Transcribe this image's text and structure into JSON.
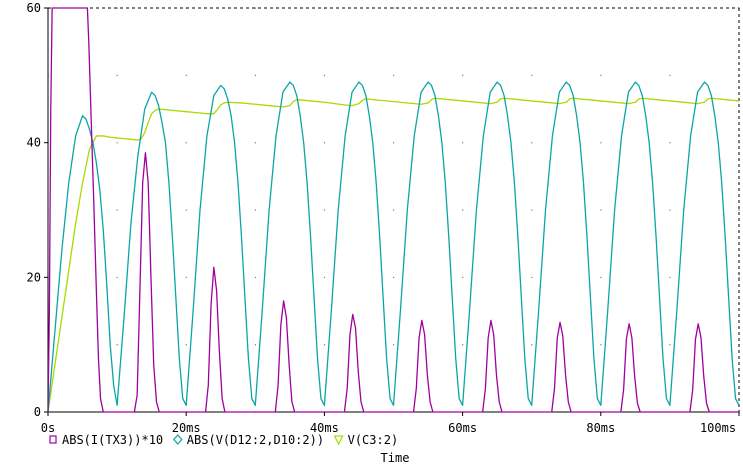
{
  "chart_data": {
    "type": "line",
    "title": "",
    "xlabel": "Time",
    "ylabel": "",
    "xlim": [
      0,
      100
    ],
    "ylim": [
      0,
      60
    ],
    "x_ticks": [
      0,
      20,
      40,
      60,
      80,
      100
    ],
    "x_tick_labels": [
      "0s",
      "20ms",
      "40ms",
      "60ms",
      "80ms",
      "100ms"
    ],
    "y_ticks": [
      0,
      20,
      40,
      60
    ],
    "y_tick_labels": [
      "0",
      "20",
      "40",
      "60"
    ],
    "grid": "dotted",
    "legend_position": "bottom-left",
    "series": [
      {
        "name": "ABS(I(TX3))*10",
        "color": "#a000a0",
        "marker": "square",
        "x": [
          0,
          0.2,
          0.4,
          0.6,
          0.8,
          1.0,
          1.4,
          2.0,
          3.0,
          4.0,
          5.0,
          5.5,
          5.7,
          5.9,
          6.2,
          6.6,
          7.0,
          7.3,
          7.6,
          8.0,
          8.5,
          9.0,
          9.5,
          10,
          12.5,
          12.9,
          13.3,
          13.7,
          14.1,
          14.5,
          14.9,
          15.3,
          15.7,
          16.1,
          16.5,
          22.8,
          23.2,
          23.6,
          24.0,
          24.4,
          24.8,
          25.2,
          25.6,
          32.9,
          33.3,
          33.7,
          34.1,
          34.5,
          34.9,
          35.3,
          35.7,
          42.9,
          43.3,
          43.7,
          44.1,
          44.5,
          44.9,
          45.3,
          45.7,
          52.9,
          53.3,
          53.7,
          54.1,
          54.5,
          54.9,
          55.3,
          55.7,
          62.9,
          63.3,
          63.7,
          64.1,
          64.5,
          64.9,
          65.3,
          65.7,
          72.9,
          73.3,
          73.7,
          74.1,
          74.5,
          74.9,
          75.3,
          75.7,
          82.9,
          83.3,
          83.7,
          84.1,
          84.5,
          84.9,
          85.3,
          85.7,
          92.9,
          93.3,
          93.7,
          94.1,
          94.5,
          94.9,
          95.3,
          95.7,
          100
        ],
        "values": [
          0,
          15,
          45,
          60,
          60,
          60,
          60,
          60,
          60,
          60,
          60,
          60,
          60,
          55,
          45,
          32,
          18,
          8,
          2,
          0,
          0,
          0,
          0,
          0,
          0,
          2.5,
          18,
          34,
          38.5,
          34,
          20,
          7,
          1.5,
          0,
          0,
          0,
          4,
          16,
          21.5,
          18,
          9,
          2,
          0,
          0,
          4,
          13,
          16.5,
          14,
          7,
          1.5,
          0,
          0,
          3.5,
          11.5,
          14.5,
          12.5,
          6,
          1.5,
          0,
          0,
          3.5,
          11,
          13.6,
          11.5,
          5.5,
          1.5,
          0,
          0,
          3.5,
          11,
          13.6,
          11.5,
          5.5,
          1.5,
          0,
          0,
          3.5,
          11,
          13.3,
          11.3,
          5.5,
          1.5,
          0,
          0,
          3.3,
          10.8,
          13.1,
          11,
          5.3,
          1.3,
          0,
          0,
          3.3,
          10.8,
          13.1,
          11,
          5.3,
          1.3,
          0,
          0
        ]
      },
      {
        "name": "ABS(V(D12:2,D10:2))",
        "color": "#0aa5a5",
        "marker": "diamond",
        "x": [
          0,
          1,
          2,
          3,
          4,
          5,
          5.5,
          6,
          6.5,
          7,
          7.5,
          8,
          8.5,
          9,
          9.5,
          10,
          11,
          12,
          13,
          14,
          15,
          15.5,
          16,
          16.5,
          17,
          17.5,
          18,
          18.5,
          19,
          19.5,
          20,
          21,
          22,
          23,
          24,
          25,
          25.5,
          26,
          26.5,
          27,
          27.5,
          28,
          28.5,
          29,
          29.5,
          30,
          31,
          32,
          33,
          34,
          35,
          35.5,
          36,
          36.5,
          37,
          37.5,
          38,
          38.5,
          39,
          39.5,
          40,
          41,
          42,
          43,
          44,
          45,
          45.5,
          46,
          46.5,
          47,
          47.5,
          48,
          48.5,
          49,
          49.5,
          50,
          51,
          52,
          53,
          54,
          55,
          55.5,
          56,
          56.5,
          57,
          57.5,
          58,
          58.5,
          59,
          59.5,
          60,
          61,
          62,
          63,
          64,
          65,
          65.5,
          66,
          66.5,
          67,
          67.5,
          68,
          68.5,
          69,
          69.5,
          70,
          71,
          72,
          73,
          74,
          75,
          75.5,
          76,
          76.5,
          77,
          77.5,
          78,
          78.5,
          79,
          79.5,
          80,
          81,
          82,
          83,
          84,
          85,
          85.5,
          86,
          86.5,
          87,
          87.5,
          88,
          88.5,
          89,
          89.5,
          90,
          91,
          92,
          93,
          94,
          95,
          95.5,
          96,
          96.5,
          97,
          97.5,
          98,
          98.5,
          99,
          99.5,
          100
        ],
        "values": [
          0,
          12,
          24,
          34,
          41,
          44,
          43.5,
          42,
          40,
          37,
          33,
          27,
          19,
          10,
          4,
          1,
          14,
          28,
          38,
          45,
          47.5,
          47,
          45.5,
          43,
          40,
          34,
          26,
          17,
          8,
          2,
          1,
          15,
          30,
          41,
          47,
          48.5,
          48,
          46.5,
          44,
          40,
          34,
          26,
          17,
          8,
          2,
          1,
          15,
          30,
          41,
          47.5,
          49,
          48.5,
          47,
          44,
          40,
          34,
          26,
          17,
          8,
          2,
          1,
          15,
          30,
          41,
          47.5,
          49,
          48.5,
          47,
          44,
          40,
          34,
          26,
          17,
          8,
          2,
          1,
          15,
          30,
          41,
          47.5,
          49,
          48.5,
          47,
          44,
          40,
          34,
          26,
          17,
          8,
          2,
          1,
          15,
          30,
          41,
          47.5,
          49,
          48.5,
          47,
          44,
          40,
          34,
          26,
          17,
          8,
          2,
          1,
          15,
          30,
          41,
          47.5,
          49,
          48.5,
          47,
          44,
          40,
          34,
          26,
          17,
          8,
          2,
          1,
          15,
          30,
          41,
          47.5,
          49,
          48.5,
          47,
          44,
          40,
          34,
          26,
          17,
          8,
          2,
          1,
          15,
          30,
          41,
          47.5,
          49,
          48.5,
          47,
          44,
          40,
          34,
          26,
          17,
          8,
          2,
          1
        ]
      },
      {
        "name": "V(C3:2)",
        "color": "#a6dc00",
        "marker": "triangle",
        "x": [
          0,
          1,
          2,
          3,
          4,
          5,
          6,
          7,
          8,
          9,
          10,
          11,
          12,
          13,
          13.5,
          14,
          14.5,
          15,
          15.5,
          16,
          17,
          18,
          20,
          22,
          23,
          24,
          24.5,
          25,
          25.5,
          26,
          28,
          30,
          33,
          34,
          35,
          35.5,
          36,
          38,
          40,
          43,
          44,
          45,
          45.5,
          46,
          48,
          50,
          53,
          54,
          55,
          55.5,
          56,
          58,
          60,
          63,
          64,
          65,
          65.5,
          66,
          68,
          70,
          73,
          74,
          75,
          75.5,
          76,
          78,
          80,
          83,
          84,
          85,
          85.5,
          86,
          88,
          90,
          93,
          94,
          95,
          95.5,
          96,
          98,
          100
        ],
        "values": [
          0,
          7,
          14,
          21,
          28,
          34,
          39,
          41,
          41,
          40.8,
          40.7,
          40.6,
          40.5,
          40.4,
          40.6,
          41.5,
          43,
          44.3,
          44.8,
          45,
          44.9,
          44.8,
          44.6,
          44.4,
          44.3,
          44.3,
          44.9,
          45.6,
          45.9,
          46,
          45.9,
          45.7,
          45.4,
          45.3,
          45.5,
          46.1,
          46.4,
          46.2,
          46,
          45.6,
          45.5,
          45.8,
          46.3,
          46.5,
          46.3,
          46.1,
          45.8,
          45.7,
          45.9,
          46.4,
          46.6,
          46.4,
          46.2,
          45.9,
          45.8,
          46,
          46.5,
          46.6,
          46.4,
          46.2,
          45.9,
          45.8,
          46,
          46.5,
          46.6,
          46.4,
          46.2,
          45.9,
          45.8,
          46,
          46.5,
          46.6,
          46.4,
          46.2,
          45.9,
          45.8,
          46,
          46.5,
          46.6,
          46.4,
          46.2
        ]
      }
    ]
  }
}
